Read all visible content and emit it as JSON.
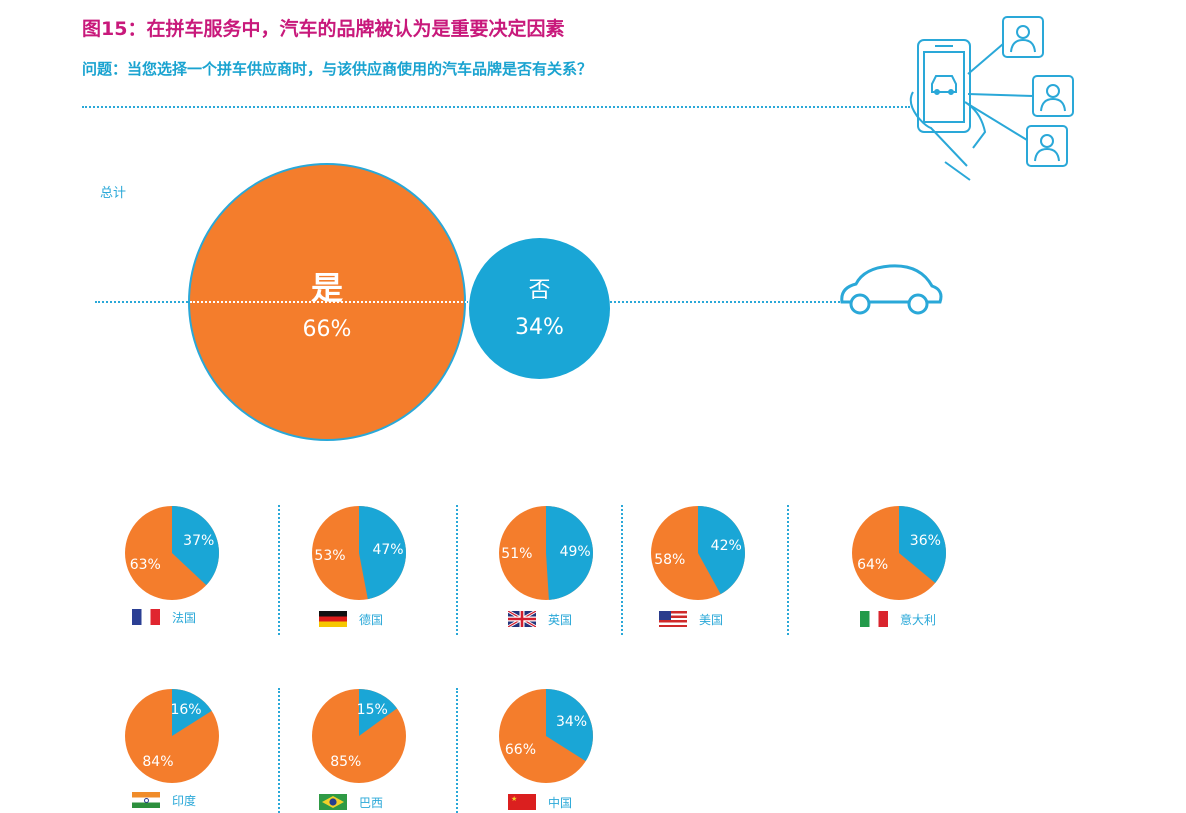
{
  "header": {
    "title": "图15：在拼车服务中，汽车的品牌被认为是重要决定因素",
    "subtitle": "问题：当您选择一个拼车供应商时，与该供应商使用的汽车品牌是否有关系？"
  },
  "colors": {
    "yes": "#f47d2c",
    "no": "#1aa6d6",
    "accent": "#2aa8d8",
    "title": "#c8197b"
  },
  "icons": [
    "phone-app-icon",
    "user-profile-icon",
    "car-icon"
  ],
  "chart_data": [
    {
      "type": "pie",
      "label": "总计",
      "categories": [
        "是",
        "否"
      ],
      "values": [
        66,
        34
      ]
    },
    {
      "type": "pie",
      "categories": [
        "是",
        "否"
      ],
      "countries": [
        {
          "name": "法国",
          "flag": "france-flag-icon",
          "yes": 63,
          "no": 37
        },
        {
          "name": "德国",
          "flag": "germany-flag-icon",
          "yes": 53,
          "no": 47
        },
        {
          "name": "英国",
          "flag": "uk-flag-icon",
          "yes": 51,
          "no": 49
        },
        {
          "name": "美国",
          "flag": "usa-flag-icon",
          "yes": 58,
          "no": 42
        },
        {
          "name": "意大利",
          "flag": "italy-flag-icon",
          "yes": 64,
          "no": 36
        },
        {
          "name": "印度",
          "flag": "india-flag-icon",
          "yes": 84,
          "no": 16
        },
        {
          "name": "巴西",
          "flag": "brazil-flag-icon",
          "yes": 85,
          "no": 15
        },
        {
          "name": "中国",
          "flag": "china-flag-icon",
          "yes": 66,
          "no": 34
        }
      ]
    }
  ]
}
